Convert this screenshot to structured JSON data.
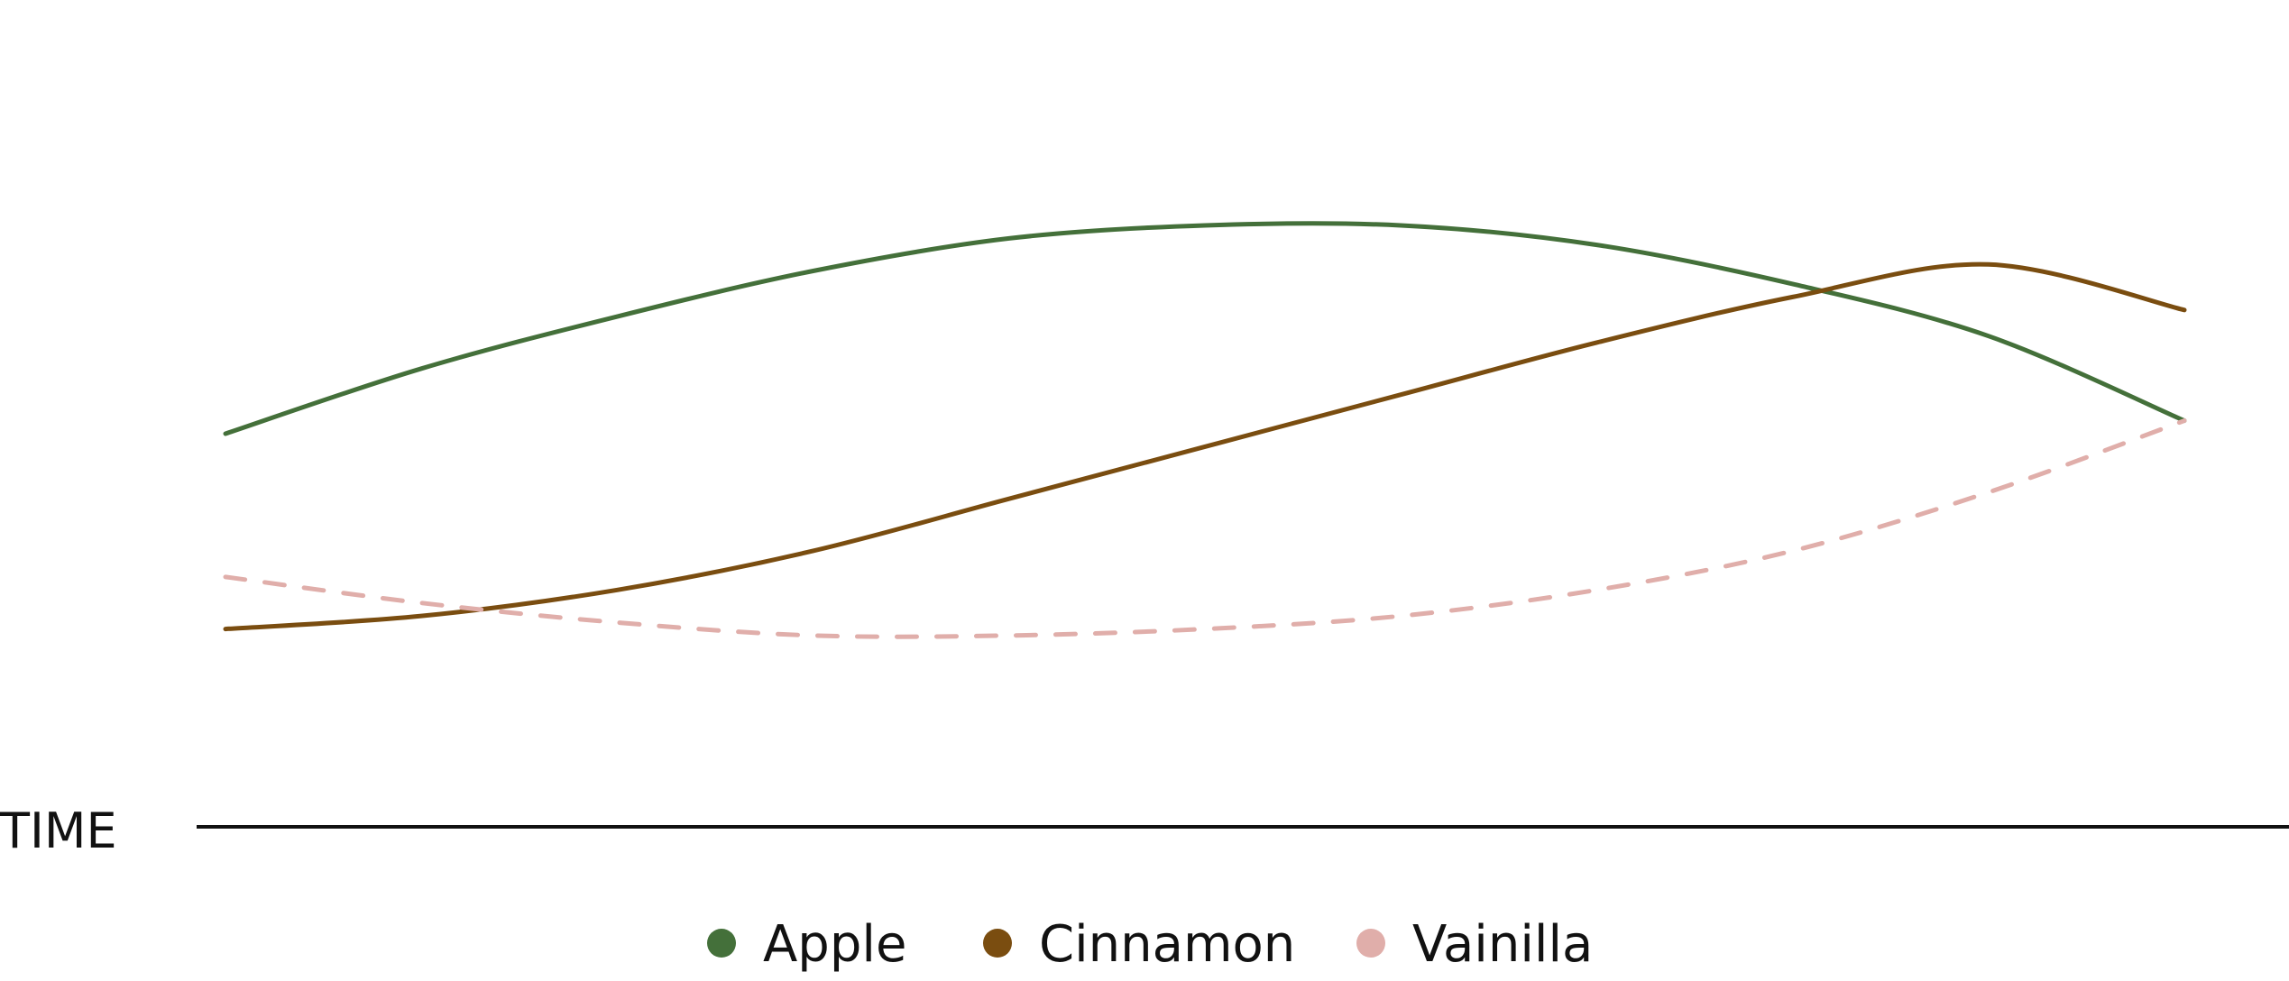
{
  "chart_data": {
    "type": "line",
    "title": "",
    "xlabel": "TIME",
    "ylabel": "",
    "x": [
      0,
      1,
      2,
      3,
      4,
      5,
      6,
      7,
      8,
      9,
      10
    ],
    "xlim": [
      0,
      10
    ],
    "ylim": [
      0,
      10
    ],
    "grid": false,
    "legend_position": "bottom-center",
    "series": [
      {
        "name": "Apple",
        "color": "#44703a",
        "dash": "solid",
        "values": [
          5.0,
          6.0,
          6.8,
          7.5,
          8.0,
          8.2,
          8.2,
          7.9,
          7.3,
          6.5,
          5.2
        ]
      },
      {
        "name": "Cinnamon",
        "color": "#7a4d10",
        "dash": "solid",
        "values": [
          2.0,
          2.2,
          2.6,
          3.2,
          4.0,
          4.8,
          5.6,
          6.4,
          7.1,
          7.6,
          6.9
        ]
      },
      {
        "name": "Vainilla",
        "color": "#e0aeaa",
        "dash": "dashed",
        "values": [
          2.8,
          2.4,
          2.1,
          1.9,
          1.9,
          2.0,
          2.2,
          2.6,
          3.2,
          4.1,
          5.2
        ]
      }
    ]
  }
}
